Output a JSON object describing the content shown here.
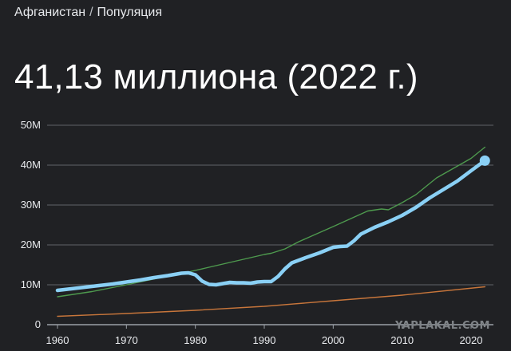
{
  "header": {
    "breadcrumb_country": "Афганистан",
    "breadcrumb_separator": "/",
    "breadcrumb_metric": "Популяция",
    "headline": "41,13 миллиона (2022 г.)"
  },
  "watermark": "YAPLAKAL.COM",
  "colors": {
    "background": "#202124",
    "gridline": "#5f6368",
    "baseline": "#9aa0a6",
    "main_series": "#8ad0f5",
    "comparison_green": "#4e9a4e",
    "comparison_orange": "#c8763b"
  },
  "chart_data": {
    "type": "line",
    "title": "",
    "xlabel": "",
    "ylabel": "",
    "xlim": [
      1960,
      2023
    ],
    "ylim": [
      0,
      50
    ],
    "y_unit": "M",
    "x_ticks": [
      1960,
      1970,
      1980,
      1990,
      2000,
      2010,
      2020
    ],
    "y_ticks": [
      0,
      10,
      20,
      30,
      40,
      50
    ],
    "y_tick_labels": [
      "0",
      "10M",
      "20M",
      "30M",
      "40M",
      "50M"
    ],
    "grid": true,
    "legend": "none",
    "series": [
      {
        "color": "#8ad0f5",
        "emphasis": "primary",
        "x": [
          1960,
          1962,
          1964,
          1966,
          1968,
          1970,
          1972,
          1974,
          1976,
          1978,
          1979,
          1980,
          1981,
          1982,
          1983,
          1984,
          1985,
          1986,
          1987,
          1988,
          1989,
          1990,
          1991,
          1992,
          1993,
          1994,
          1996,
          1998,
          2000,
          2001,
          2002,
          2003,
          2004,
          2006,
          2008,
          2010,
          2012,
          2014,
          2016,
          2018,
          2020,
          2022
        ],
        "values": [
          8.6,
          9.0,
          9.4,
          9.8,
          10.2,
          10.7,
          11.2,
          11.8,
          12.3,
          12.9,
          13.0,
          12.5,
          10.9,
          10.1,
          10.0,
          10.3,
          10.6,
          10.5,
          10.5,
          10.4,
          10.7,
          10.8,
          10.8,
          12.1,
          14.0,
          15.5,
          16.8,
          18.0,
          19.4,
          19.6,
          19.7,
          21.0,
          22.7,
          24.4,
          25.8,
          27.4,
          29.4,
          31.8,
          33.9,
          36.0,
          38.6,
          41.13
        ]
      },
      {
        "color": "#4e9a4e",
        "emphasis": "secondary",
        "x": [
          1960,
          1965,
          1970,
          1975,
          1980,
          1985,
          1990,
          1991,
          1993,
          1995,
          2000,
          2005,
          2007,
          2008,
          2010,
          2012,
          2015,
          2020,
          2022
        ],
        "values": [
          7.0,
          8.3,
          10.0,
          11.8,
          13.6,
          15.6,
          17.6,
          17.9,
          19.0,
          20.8,
          24.6,
          28.5,
          29.0,
          28.8,
          30.6,
          32.6,
          36.8,
          41.7,
          44.5
        ]
      },
      {
        "color": "#c8763b",
        "emphasis": "secondary",
        "x": [
          1960,
          1970,
          1980,
          1990,
          2000,
          2010,
          2022
        ],
        "values": [
          2.1,
          2.8,
          3.6,
          4.6,
          6.0,
          7.4,
          9.5
        ]
      }
    ]
  }
}
